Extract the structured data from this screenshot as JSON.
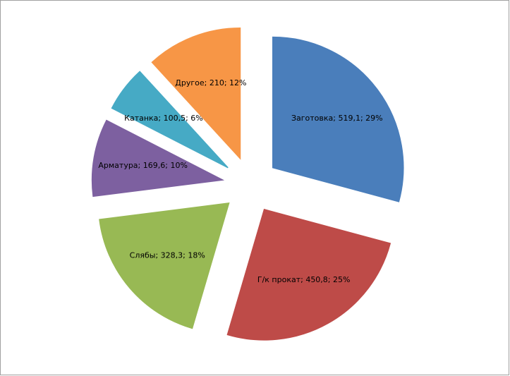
{
  "chart_data": {
    "type": "pie",
    "categories": [
      "Заготовка",
      "Г/к прокат",
      "Слябы",
      "Арматура",
      "Катанка",
      "Другое"
    ],
    "values": [
      519.1,
      450.8,
      328.3,
      169.6,
      100.5,
      210
    ],
    "value_labels": [
      "Заготовка; 519,1; 29%",
      "Г/к прокат; 450,8; 25%",
      "Слябы; 328,3; 18%",
      "Арматура; 169,6; 10%",
      "Катанка; 100,5; 6%",
      "Другое; 210; 12%"
    ],
    "colors": [
      "#4a7ebb",
      "#be4b48",
      "#98b954",
      "#7d60a0",
      "#46aac5",
      "#f79646"
    ]
  }
}
